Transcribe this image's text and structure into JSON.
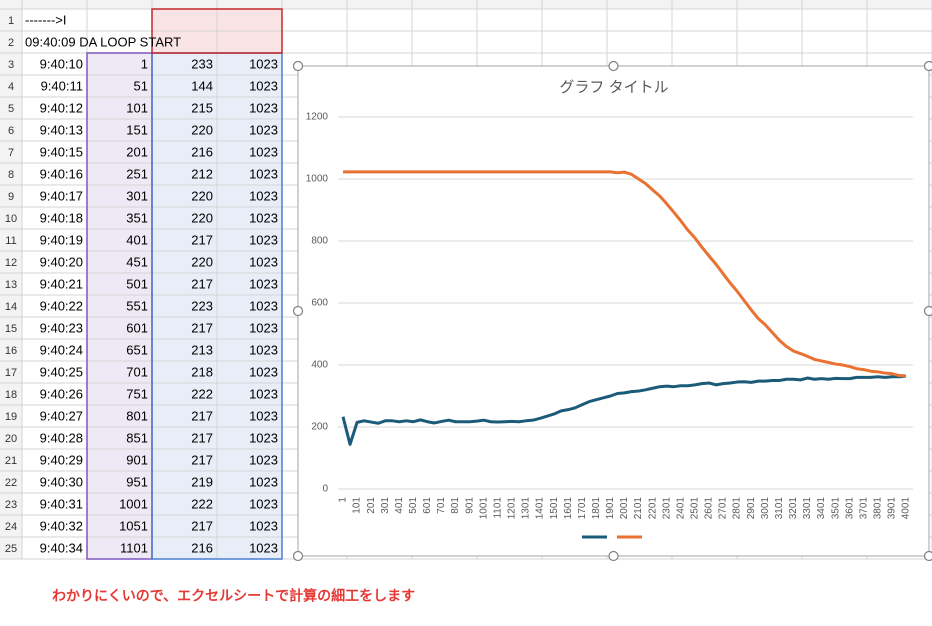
{
  "sheet": {
    "row_numbers": [
      "1",
      "2",
      "3",
      "4",
      "5",
      "6",
      "7",
      "8",
      "9",
      "10",
      "11",
      "12",
      "13",
      "14",
      "15",
      "16",
      "17",
      "18",
      "19",
      "20",
      "21",
      "22",
      "23",
      "24",
      "25"
    ],
    "rows": [
      [
        "------->I"
      ],
      [
        "09:40:09 DA LOOP START"
      ],
      [
        "9:40:10",
        1,
        233,
        1023
      ],
      [
        "9:40:11",
        51,
        144,
        1023
      ],
      [
        "9:40:12",
        101,
        215,
        1023
      ],
      [
        "9:40:13",
        151,
        220,
        1023
      ],
      [
        "9:40:15",
        201,
        216,
        1023
      ],
      [
        "9:40:16",
        251,
        212,
        1023
      ],
      [
        "9:40:17",
        301,
        220,
        1023
      ],
      [
        "9:40:18",
        351,
        220,
        1023
      ],
      [
        "9:40:19",
        401,
        217,
        1023
      ],
      [
        "9:40:20",
        451,
        220,
        1023
      ],
      [
        "9:40:21",
        501,
        217,
        1023
      ],
      [
        "9:40:22",
        551,
        223,
        1023
      ],
      [
        "9:40:23",
        601,
        217,
        1023
      ],
      [
        "9:40:24",
        651,
        213,
        1023
      ],
      [
        "9:40:25",
        701,
        218,
        1023
      ],
      [
        "9:40:26",
        751,
        222,
        1023
      ],
      [
        "9:40:27",
        801,
        217,
        1023
      ],
      [
        "9:40:28",
        851,
        217,
        1023
      ],
      [
        "9:40:29",
        901,
        217,
        1023
      ],
      [
        "9:40:30",
        951,
        219,
        1023
      ],
      [
        "9:40:31",
        1001,
        222,
        1023
      ],
      [
        "9:40:32",
        1051,
        217,
        1023
      ],
      [
        "9:40:34",
        1101,
        216,
        1023
      ]
    ]
  },
  "chart_data": {
    "type": "line",
    "title": "グラフ タイトル",
    "categories": [
      1,
      null,
      101,
      null,
      201,
      null,
      301,
      null,
      401,
      null,
      501,
      null,
      601,
      null,
      701,
      null,
      801,
      null,
      901,
      null,
      1001,
      null,
      1101,
      null,
      1201,
      null,
      1301,
      null,
      1401,
      null,
      1501,
      null,
      1601,
      null,
      1701,
      null,
      1801,
      null,
      1901,
      null,
      2001,
      null,
      2101,
      null,
      2201,
      null,
      2301,
      null,
      2401,
      null,
      2501,
      null,
      2601,
      null,
      2701,
      null,
      2801,
      null,
      2901,
      null,
      3001,
      null,
      3101,
      null,
      3201,
      null,
      3301,
      null,
      3401,
      null,
      3501,
      null,
      3601,
      null,
      3701,
      null,
      3801,
      null,
      3901,
      null,
      4001
    ],
    "series": [
      {
        "color": "#1b5a78",
        "values": [
          233,
          144,
          215,
          220,
          216,
          212,
          220,
          220,
          217,
          220,
          217,
          223,
          217,
          213,
          218,
          222,
          217,
          217,
          217,
          219,
          222,
          217,
          216,
          217,
          218,
          217,
          220,
          222,
          228,
          235,
          242,
          252,
          256,
          262,
          272,
          282,
          288,
          294,
          300,
          308,
          310,
          314,
          316,
          320,
          325,
          330,
          332,
          330,
          333,
          333,
          336,
          340,
          342,
          336,
          340,
          342,
          345,
          346,
          344,
          348,
          348,
          350,
          350,
          354,
          354,
          352,
          358,
          354,
          356,
          354,
          357,
          356,
          356,
          360,
          360,
          360,
          362,
          360,
          362,
          362,
          364
        ]
      },
      {
        "color": "#e97132",
        "values": [
          1023,
          1023,
          1023,
          1023,
          1023,
          1023,
          1023,
          1023,
          1023,
          1023,
          1023,
          1023,
          1023,
          1023,
          1023,
          1023,
          1023,
          1023,
          1023,
          1023,
          1023,
          1023,
          1023,
          1023,
          1023,
          1023,
          1023,
          1023,
          1023,
          1023,
          1023,
          1023,
          1023,
          1023,
          1023,
          1023,
          1023,
          1023,
          1023,
          1020,
          1022,
          1015,
          1000,
          985,
          965,
          945,
          920,
          893,
          865,
          835,
          810,
          780,
          752,
          725,
          695,
          665,
          638,
          608,
          578,
          550,
          530,
          505,
          480,
          460,
          445,
          437,
          428,
          418,
          413,
          408,
          403,
          400,
          395,
          388,
          385,
          380,
          378,
          374,
          372,
          366,
          365
        ]
      }
    ],
    "ylim": [
      0,
      1200
    ],
    "yticks": [
      0,
      200,
      400,
      600,
      800,
      1000,
      1200
    ],
    "grid": true,
    "legend": "bottom"
  },
  "caption": "わかりにくいので、エクセルシートで計算の細工をします"
}
